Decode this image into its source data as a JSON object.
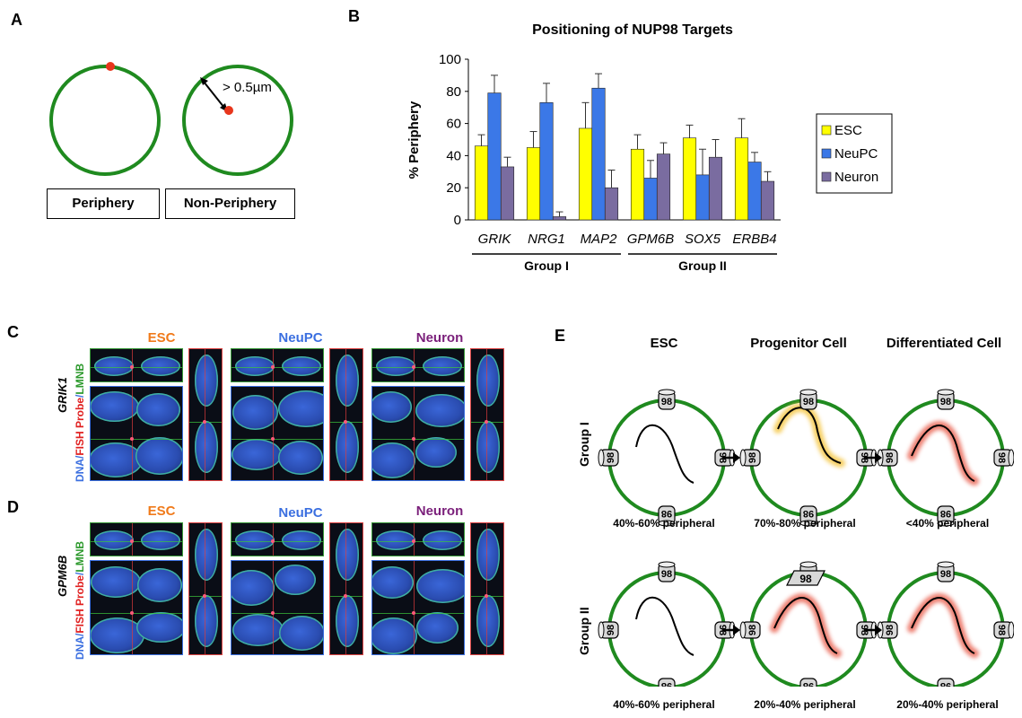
{
  "panel_a": {
    "letter": "A",
    "distance_label": "> 0.5µm",
    "periphery_label": "Periphery",
    "non_periphery_label": "Non-Periphery",
    "colors": {
      "ring": "#1f8a1f",
      "dot": "#e8361c"
    }
  },
  "panel_b": {
    "letter": "B"
  },
  "chart_data": {
    "type": "bar",
    "title": "Positioning of NUP98 Targets",
    "ylabel": "% Periphery",
    "xlabel": "",
    "ylim": [
      0,
      100
    ],
    "yticks": [
      0,
      20,
      40,
      60,
      80,
      100
    ],
    "categories": [
      "GRIK",
      "NRG1",
      "MAP2",
      "GPM6B",
      "SOX5",
      "ERBB4"
    ],
    "series": [
      {
        "name": "ESC",
        "color": "#ffff00",
        "values": [
          46,
          45,
          57,
          44,
          51,
          51
        ],
        "errors": [
          7,
          10,
          16,
          9,
          8,
          12
        ]
      },
      {
        "name": "NeuPC",
        "color": "#3b78e7",
        "values": [
          79,
          73,
          82,
          26,
          28,
          36
        ],
        "errors": [
          11,
          12,
          9,
          11,
          16,
          6
        ]
      },
      {
        "name": "Neuron",
        "color": "#7a6ca0",
        "values": [
          33,
          2,
          20,
          41,
          39,
          24
        ],
        "errors": [
          6,
          3,
          11,
          7,
          11,
          6
        ]
      }
    ],
    "groups": [
      {
        "label": "Group I",
        "categories": [
          "GRIK",
          "NRG1",
          "MAP2"
        ]
      },
      {
        "label": "Group II",
        "categories": [
          "GPM6B",
          "SOX5",
          "ERBB4"
        ]
      }
    ],
    "legend_position": "right",
    "grid": false
  },
  "panel_c": {
    "letter": "C",
    "gene": "GRIK1",
    "cols": [
      "ESC",
      "NeuPC",
      "Neuron"
    ],
    "col_colors": [
      "#f07a1a",
      "#3b6fe0",
      "#7a1f7a"
    ]
  },
  "panel_d": {
    "letter": "D",
    "gene": "GPM6B",
    "cols": [
      "ESC",
      "NeuPC",
      "Neuron"
    ],
    "col_colors": [
      "#f07a1a",
      "#3b6fe0",
      "#7a1f7a"
    ]
  },
  "stain_label": {
    "dna": "DNA",
    "sep1": "/",
    "fish": "FISH Probe",
    "sep2": "/",
    "lmnb": "LMNB",
    "colors": {
      "dna": "#3b6fe0",
      "fish": "#e02020",
      "lmnb": "#2e9a2e",
      "sep": "#3b6fe0"
    }
  },
  "panel_e": {
    "letter": "E",
    "headers": [
      "ESC",
      "Progenitor Cell",
      "Differentiated Cell"
    ],
    "pore_label": "98",
    "group1": {
      "label": "Group I",
      "pcts": [
        "40%-60% peripheral",
        "70%-80% peripheral",
        "<40% peripheral"
      ]
    },
    "group2": {
      "label": "Group II",
      "pcts": [
        "40%-60% peripheral",
        "20%-40% peripheral",
        "20%-40% peripheral"
      ]
    },
    "colors": {
      "ring": "#1f8a1f",
      "glow_yellow": "#f5c84a",
      "glow_red": "#ea6a5a"
    }
  }
}
